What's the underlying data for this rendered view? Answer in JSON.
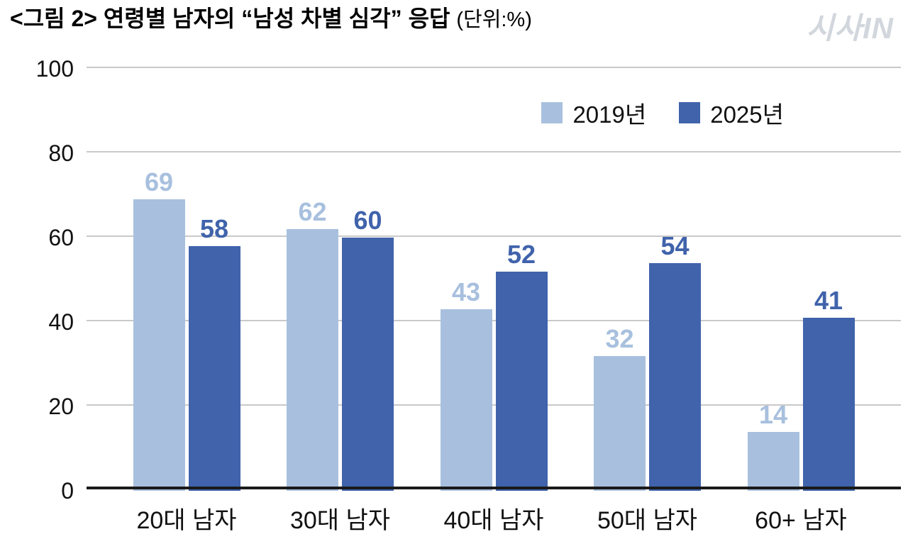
{
  "header": {
    "title_prefix": "<그림 2>",
    "title_main": "연령별 남자의 “남성 차별 심각” 응답",
    "title_unit": "(단위:%)",
    "logo": "시사IN"
  },
  "chart_data": {
    "type": "bar",
    "title": "연령별 남자의 “남성 차별 심각” 응답",
    "unit_label": "(단위:%)",
    "categories": [
      "20대 남자",
      "30대 남자",
      "40대 남자",
      "50대 남자",
      "60+ 남자"
    ],
    "series": [
      {
        "name": "2019년",
        "color": "#a8c0de",
        "values": [
          69,
          62,
          43,
          32,
          14
        ]
      },
      {
        "name": "2025년",
        "color": "#4063ab",
        "values": [
          58,
          60,
          52,
          54,
          41
        ]
      }
    ],
    "ylim": [
      0,
      100
    ],
    "yticks": [
      0,
      20,
      40,
      60,
      80,
      100
    ],
    "grid": true,
    "legend_position": "top-right"
  }
}
